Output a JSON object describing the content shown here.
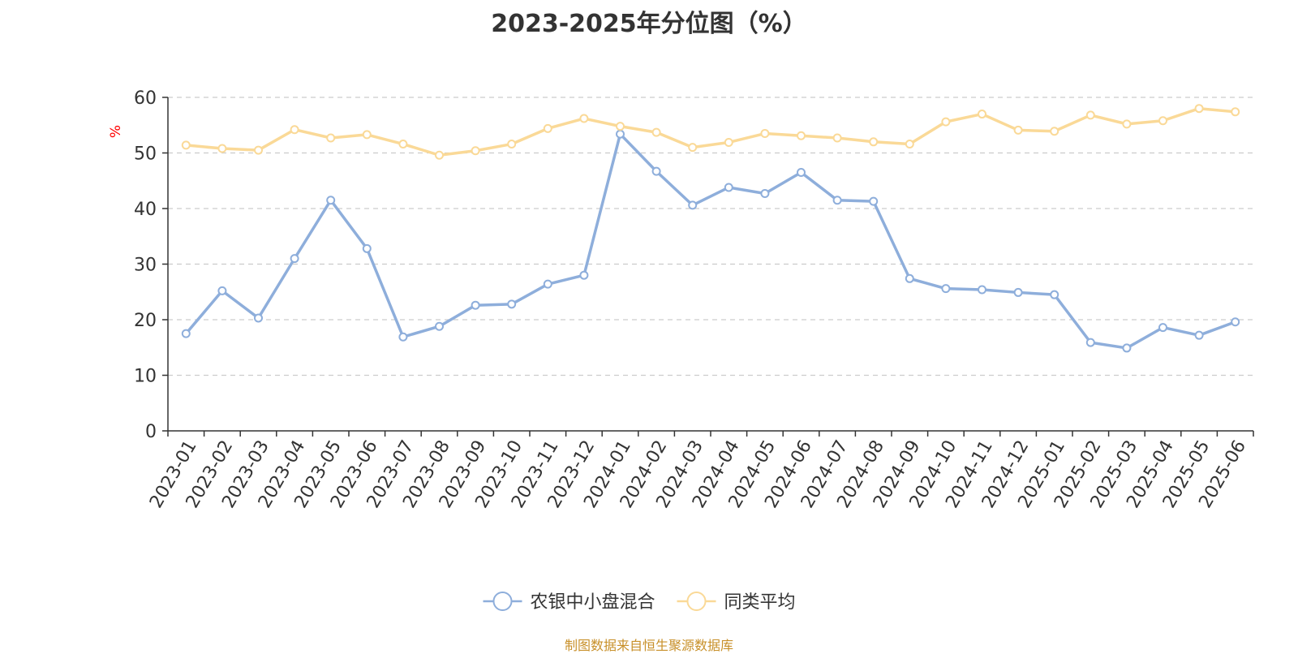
{
  "chart_data": {
    "type": "line",
    "title": "2023-2025年分位图（%）",
    "ylabel": "%",
    "ylim": [
      0,
      60
    ],
    "yticks": [
      0,
      10,
      20,
      30,
      40,
      50,
      60
    ],
    "grid": true,
    "legend_position": "bottom",
    "categories": [
      "2023-01",
      "2023-02",
      "2023-03",
      "2023-04",
      "2023-05",
      "2023-06",
      "2023-07",
      "2023-08",
      "2023-09",
      "2023-10",
      "2023-11",
      "2023-12",
      "2024-01",
      "2024-02",
      "2024-03",
      "2024-04",
      "2024-05",
      "2024-06",
      "2024-07",
      "2024-08",
      "2024-09",
      "2024-10",
      "2024-11",
      "2024-12",
      "2025-01",
      "2025-02",
      "2025-03",
      "2025-04",
      "2025-05",
      "2025-06"
    ],
    "series": [
      {
        "name": "农银中小盘混合",
        "color": "#8eaedb",
        "values": [
          17.5,
          25.2,
          20.3,
          31.0,
          41.5,
          32.8,
          16.9,
          18.8,
          22.6,
          22.8,
          26.4,
          28.0,
          53.4,
          46.7,
          40.6,
          43.8,
          42.7,
          46.5,
          41.5,
          41.3,
          27.4,
          25.6,
          25.4,
          24.9,
          24.5,
          15.9,
          14.9,
          18.6,
          17.2,
          19.6
        ]
      },
      {
        "name": "同类平均",
        "color": "#fad997",
        "values": [
          51.4,
          50.8,
          50.5,
          54.2,
          52.7,
          53.3,
          51.6,
          49.6,
          50.4,
          51.6,
          54.4,
          56.2,
          54.8,
          53.7,
          51.0,
          51.9,
          53.5,
          53.1,
          52.7,
          52.0,
          51.6,
          55.6,
          57.0,
          54.1,
          53.9,
          56.8,
          55.2,
          55.8,
          58.0,
          57.4
        ]
      }
    ]
  },
  "source_text": "制图数据来自恒生聚源数据库",
  "colors": {
    "axis": "#333333",
    "grid": "#cccccc",
    "tick_text": "#333333",
    "ylabel": "#ff0000",
    "source": "#c8902a"
  }
}
